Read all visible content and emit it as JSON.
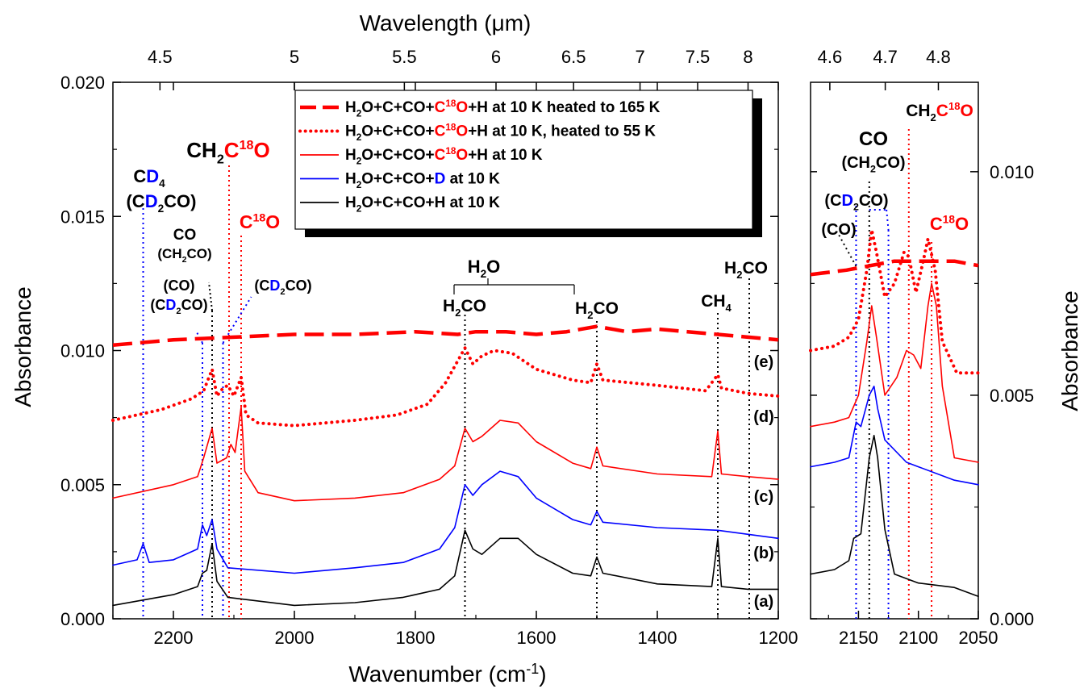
{
  "chart_data": {
    "type": "line",
    "x_axis_label": "Wavenumber (cm",
    "x_axis_label_sup": "-1",
    "x_axis_label_close": ")",
    "top_axis_label": "Wavelength (μm)",
    "y_axis_label": "Absorbance",
    "left_panel": {
      "xlim": [
        2300,
        1200
      ],
      "ylim": [
        0.0,
        0.02
      ],
      "x_ticks": [
        "2200",
        "2000",
        "1800",
        "1600",
        "1400",
        "1200"
      ],
      "y_ticks": [
        "0.000",
        "0.005",
        "0.010",
        "0.015",
        "0.020"
      ],
      "top_ticks": [
        "4.5",
        "5",
        "5.5",
        "6",
        "6.5",
        "7",
        "7.5",
        "8"
      ]
    },
    "right_panel": {
      "xlim": [
        2190,
        2050
      ],
      "ylim": [
        0.0,
        0.012
      ],
      "x_ticks": [
        "2150",
        "2100",
        "2050"
      ],
      "y_ticks": [
        "0.000",
        "0.005",
        "0.010"
      ],
      "top_ticks": [
        "4.6",
        "4.7",
        "4.8"
      ]
    },
    "legend": [
      {
        "parts": [
          "H",
          "2",
          "O+C+CO+",
          "C",
          "18",
          "O",
          "+H at 10 K heated to 165 K"
        ],
        "style": "dash",
        "color": "#ff0000"
      },
      {
        "parts": [
          "H",
          "2",
          "O+C+CO+",
          "C",
          "18",
          "O",
          "+H at 10 K, heated to 55 K"
        ],
        "style": "dot",
        "color": "#ff0000"
      },
      {
        "parts": [
          "H",
          "2",
          "O+C+CO+",
          "C",
          "18",
          "O",
          "+H at 10 K"
        ],
        "style": "solid",
        "color": "#ff0000"
      },
      {
        "parts": [
          "H",
          "2",
          "O+C+CO+",
          "D",
          "at 10 K"
        ],
        "style": "solid",
        "color": "#0000ff"
      },
      {
        "parts": [
          "H",
          "2",
          "O+C+CO+H at 10 K"
        ],
        "style": "solid",
        "color": "#000000"
      }
    ],
    "curve_labels": [
      "(e)",
      "(d)",
      "(c)",
      "(b)",
      "(a)"
    ],
    "annotations": {
      "ch2c18o": [
        "CH",
        "2",
        "C",
        "18",
        "O"
      ],
      "c18o": [
        "C",
        "18",
        "O"
      ],
      "cd4": [
        "C",
        "D",
        "4"
      ],
      "cd2co": [
        "(C",
        "D",
        "2",
        "CO)"
      ],
      "co": "CO",
      "ch2co": [
        "(CH",
        "2",
        "CO)"
      ],
      "co_paren": "(CO)",
      "h2o": [
        "H",
        "2",
        "O"
      ],
      "h2co": [
        "H",
        "2",
        "CO"
      ],
      "ch4": [
        "CH",
        "4"
      ]
    },
    "series": [
      {
        "key": "a",
        "color": "#000000",
        "style": "solid",
        "points": [
          [
            2300,
            0.0005
          ],
          [
            2200,
            0.0009
          ],
          [
            2160,
            0.0012
          ],
          [
            2152,
            0.0017
          ],
          [
            2145,
            0.0018
          ],
          [
            2136,
            0.0028
          ],
          [
            2128,
            0.0014
          ],
          [
            2110,
            0.0008
          ],
          [
            2000,
            0.0005
          ],
          [
            1900,
            0.0006
          ],
          [
            1820,
            0.0008
          ],
          [
            1760,
            0.0011
          ],
          [
            1735,
            0.0016
          ],
          [
            1718,
            0.0033
          ],
          [
            1705,
            0.0026
          ],
          [
            1690,
            0.0024
          ],
          [
            1660,
            0.003
          ],
          [
            1630,
            0.003
          ],
          [
            1600,
            0.0024
          ],
          [
            1540,
            0.0017
          ],
          [
            1510,
            0.0016
          ],
          [
            1500,
            0.0023
          ],
          [
            1490,
            0.0017
          ],
          [
            1400,
            0.0013
          ],
          [
            1310,
            0.0012
          ],
          [
            1300,
            0.003
          ],
          [
            1294,
            0.0012
          ],
          [
            1250,
            0.0011
          ],
          [
            1200,
            0.0011
          ]
        ],
        "right": [
          [
            2190,
            0.001
          ],
          [
            2170,
            0.0011
          ],
          [
            2158,
            0.0013
          ],
          [
            2154,
            0.0018
          ],
          [
            2148,
            0.0019
          ],
          [
            2141,
            0.0036
          ],
          [
            2137,
            0.0041
          ],
          [
            2134,
            0.0036
          ],
          [
            2128,
            0.002
          ],
          [
            2120,
            0.001
          ],
          [
            2100,
            0.0008
          ],
          [
            2070,
            0.0007
          ],
          [
            2050,
            0.0005
          ]
        ]
      },
      {
        "key": "b",
        "color": "#0000ff",
        "style": "solid",
        "points": [
          [
            2300,
            0.002
          ],
          [
            2260,
            0.0022
          ],
          [
            2250,
            0.0028
          ],
          [
            2240,
            0.0021
          ],
          [
            2200,
            0.0022
          ],
          [
            2160,
            0.0026
          ],
          [
            2152,
            0.0035
          ],
          [
            2145,
            0.0031
          ],
          [
            2136,
            0.0037
          ],
          [
            2128,
            0.0026
          ],
          [
            2110,
            0.0019
          ],
          [
            2000,
            0.0017
          ],
          [
            1900,
            0.0019
          ],
          [
            1820,
            0.0021
          ],
          [
            1760,
            0.0026
          ],
          [
            1735,
            0.0034
          ],
          [
            1718,
            0.005
          ],
          [
            1705,
            0.0046
          ],
          [
            1690,
            0.005
          ],
          [
            1660,
            0.0055
          ],
          [
            1630,
            0.0053
          ],
          [
            1600,
            0.0045
          ],
          [
            1540,
            0.0037
          ],
          [
            1510,
            0.0035
          ],
          [
            1500,
            0.004
          ],
          [
            1490,
            0.0036
          ],
          [
            1400,
            0.0034
          ],
          [
            1300,
            0.0033
          ],
          [
            1200,
            0.003
          ]
        ],
        "right": [
          [
            2190,
            0.0034
          ],
          [
            2170,
            0.0035
          ],
          [
            2158,
            0.0036
          ],
          [
            2152,
            0.0044
          ],
          [
            2148,
            0.0043
          ],
          [
            2141,
            0.005
          ],
          [
            2137,
            0.0052
          ],
          [
            2134,
            0.0047
          ],
          [
            2128,
            0.004
          ],
          [
            2110,
            0.0035
          ],
          [
            2100,
            0.0034
          ],
          [
            2070,
            0.0031
          ],
          [
            2050,
            0.003
          ]
        ]
      },
      {
        "key": "c",
        "color": "#ff0000",
        "style": "solid",
        "points": [
          [
            2300,
            0.0045
          ],
          [
            2200,
            0.005
          ],
          [
            2160,
            0.0053
          ],
          [
            2150,
            0.006
          ],
          [
            2136,
            0.0071
          ],
          [
            2128,
            0.0058
          ],
          [
            2112,
            0.006
          ],
          [
            2105,
            0.0065
          ],
          [
            2098,
            0.0062
          ],
          [
            2088,
            0.0079
          ],
          [
            2082,
            0.0055
          ],
          [
            2060,
            0.0047
          ],
          [
            2000,
            0.0044
          ],
          [
            1900,
            0.0045
          ],
          [
            1820,
            0.0047
          ],
          [
            1760,
            0.0052
          ],
          [
            1735,
            0.0057
          ],
          [
            1718,
            0.0071
          ],
          [
            1705,
            0.0066
          ],
          [
            1690,
            0.0068
          ],
          [
            1660,
            0.0074
          ],
          [
            1630,
            0.0073
          ],
          [
            1600,
            0.0066
          ],
          [
            1540,
            0.0058
          ],
          [
            1510,
            0.0056
          ],
          [
            1500,
            0.0064
          ],
          [
            1490,
            0.0057
          ],
          [
            1400,
            0.0054
          ],
          [
            1310,
            0.0053
          ],
          [
            1300,
            0.007
          ],
          [
            1294,
            0.0054
          ],
          [
            1250,
            0.0053
          ],
          [
            1200,
            0.0052
          ]
        ],
        "right": [
          [
            2190,
            0.0043
          ],
          [
            2170,
            0.0044
          ],
          [
            2158,
            0.0045
          ],
          [
            2150,
            0.005
          ],
          [
            2143,
            0.0062
          ],
          [
            2139,
            0.007
          ],
          [
            2135,
            0.0063
          ],
          [
            2128,
            0.005
          ],
          [
            2118,
            0.0054
          ],
          [
            2110,
            0.006
          ],
          [
            2104,
            0.0059
          ],
          [
            2098,
            0.0056
          ],
          [
            2092,
            0.007
          ],
          [
            2089,
            0.0075
          ],
          [
            2085,
            0.007
          ],
          [
            2080,
            0.0052
          ],
          [
            2070,
            0.0036
          ],
          [
            2050,
            0.0035
          ]
        ]
      },
      {
        "key": "d",
        "color": "#ff0000",
        "style": "dot",
        "points": [
          [
            2300,
            0.0074
          ],
          [
            2220,
            0.0078
          ],
          [
            2170,
            0.0082
          ],
          [
            2150,
            0.0085
          ],
          [
            2136,
            0.0093
          ],
          [
            2128,
            0.0083
          ],
          [
            2118,
            0.0086
          ],
          [
            2110,
            0.0087
          ],
          [
            2100,
            0.0083
          ],
          [
            2088,
            0.009
          ],
          [
            2080,
            0.0076
          ],
          [
            2060,
            0.0073
          ],
          [
            2000,
            0.0072
          ],
          [
            1900,
            0.0074
          ],
          [
            1830,
            0.0076
          ],
          [
            1780,
            0.008
          ],
          [
            1750,
            0.0088
          ],
          [
            1718,
            0.0101
          ],
          [
            1705,
            0.0095
          ],
          [
            1690,
            0.0098
          ],
          [
            1670,
            0.01
          ],
          [
            1640,
            0.0099
          ],
          [
            1600,
            0.0093
          ],
          [
            1540,
            0.0089
          ],
          [
            1510,
            0.0088
          ],
          [
            1500,
            0.0095
          ],
          [
            1490,
            0.0089
          ],
          [
            1400,
            0.0087
          ],
          [
            1320,
            0.0085
          ],
          [
            1300,
            0.0091
          ],
          [
            1294,
            0.0086
          ],
          [
            1250,
            0.0084
          ],
          [
            1200,
            0.0083
          ]
        ],
        "right": [
          [
            2190,
            0.006
          ],
          [
            2170,
            0.0061
          ],
          [
            2158,
            0.0063
          ],
          [
            2150,
            0.0067
          ],
          [
            2143,
            0.0078
          ],
          [
            2139,
            0.0087
          ],
          [
            2135,
            0.0082
          ],
          [
            2128,
            0.0072
          ],
          [
            2120,
            0.0075
          ],
          [
            2112,
            0.0082
          ],
          [
            2108,
            0.0081
          ],
          [
            2102,
            0.0073
          ],
          [
            2096,
            0.008
          ],
          [
            2092,
            0.0085
          ],
          [
            2086,
            0.0078
          ],
          [
            2080,
            0.0062
          ],
          [
            2068,
            0.0055
          ],
          [
            2050,
            0.0055
          ]
        ]
      },
      {
        "key": "e",
        "color": "#ff0000",
        "style": "dash",
        "points": [
          [
            2300,
            0.0102
          ],
          [
            2200,
            0.0104
          ],
          [
            2100,
            0.0105
          ],
          [
            2000,
            0.0106
          ],
          [
            1900,
            0.0106
          ],
          [
            1800,
            0.0107
          ],
          [
            1730,
            0.0106
          ],
          [
            1700,
            0.0107
          ],
          [
            1650,
            0.0107
          ],
          [
            1600,
            0.0106
          ],
          [
            1550,
            0.0107
          ],
          [
            1500,
            0.0109
          ],
          [
            1450,
            0.0107
          ],
          [
            1400,
            0.0108
          ],
          [
            1350,
            0.0107
          ],
          [
            1300,
            0.0106
          ],
          [
            1250,
            0.0105
          ],
          [
            1200,
            0.0104
          ]
        ],
        "right": [
          [
            2190,
            0.0077
          ],
          [
            2160,
            0.0078
          ],
          [
            2140,
            0.0079
          ],
          [
            2120,
            0.008
          ],
          [
            2100,
            0.008
          ],
          [
            2070,
            0.008
          ],
          [
            2050,
            0.0079
          ]
        ]
      }
    ]
  }
}
